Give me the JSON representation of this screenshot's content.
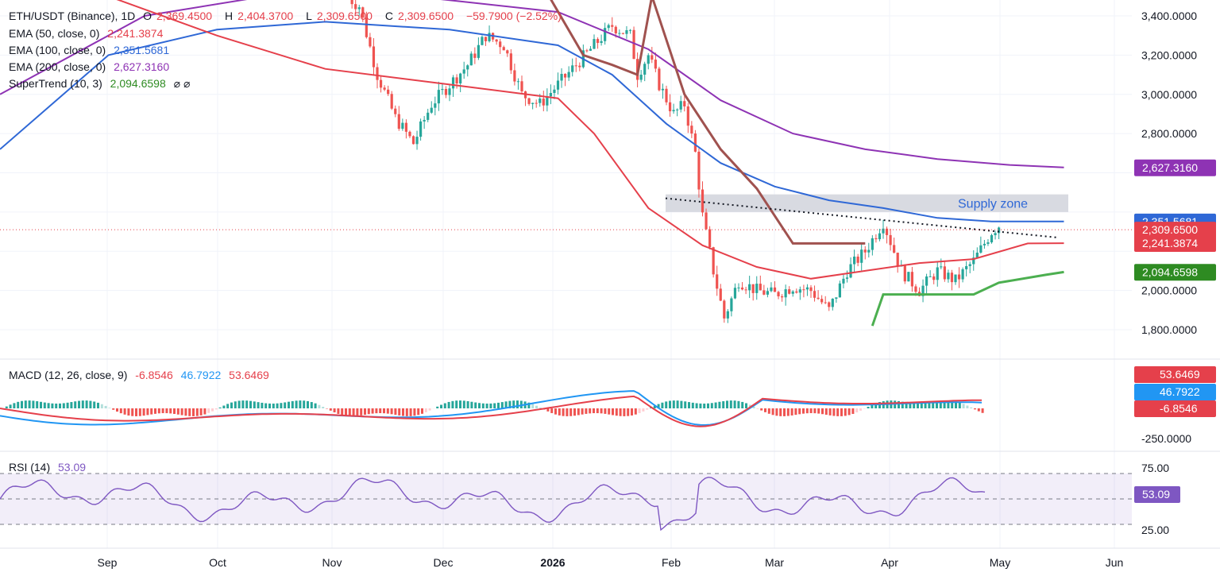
{
  "symbol_legend": {
    "title": "ETH/USDT (Binance), 1D",
    "open_label": "O",
    "open": "2,369.4500",
    "high_label": "H",
    "high": "2,404.3700",
    "low_label": "L",
    "low": "2,309.6500",
    "close_label": "C",
    "close": "2,309.6500",
    "change": "−59.7900 (−2.52%)"
  },
  "indicators": [
    {
      "label": "EMA (50, close, 0)",
      "value": "2,241.3874",
      "color": "#e5404b"
    },
    {
      "label": "EMA (100, close, 0)",
      "value": "2,351.5681",
      "color": "#2f68d6"
    },
    {
      "label": "EMA (200, close, 0)",
      "value": "2,627.3160",
      "color": "#8e33b4"
    },
    {
      "label": "SuperTrend (10, 3)",
      "value": "2,094.6598",
      "color": "#2e8b22",
      "icons": "⌀ ⌀"
    }
  ],
  "macd_legend": {
    "label": "MACD (12, 26, close, 9)",
    "hist": "-6.8546",
    "macd": "46.7922",
    "signal": "53.6469"
  },
  "rsi_legend": {
    "label": "RSI (14)",
    "value": "53.09"
  },
  "chart_data": {
    "type": "candlestick",
    "price_axis": {
      "ticks": [
        "3,400.0000",
        "3,200.0000",
        "3,000.0000",
        "2,800.0000",
        "2,000.0000",
        "1,800.0000"
      ],
      "tick_values": [
        3400,
        3200,
        3000,
        2800,
        2000,
        1800
      ]
    },
    "time_axis": {
      "labels": [
        "Sep",
        "Oct",
        "Nov",
        "Dec",
        "2026",
        "Feb",
        "Mar",
        "Apr",
        "May",
        "Jun"
      ]
    },
    "price_badges": [
      {
        "text": "2,627.3160",
        "value": 2627.316,
        "color": "#8e33b4"
      },
      {
        "text": "2,351.5681",
        "value": 2351.5681,
        "color": "#2f68d6"
      },
      {
        "text": "2,309.6500",
        "value": 2309.65,
        "color": "#e5404b"
      },
      {
        "text": "2,241.3874",
        "value": 2241.3874,
        "color": "#e5404b"
      },
      {
        "text": "2,094.6598",
        "value": 2094.6598,
        "color": "#2e8b22"
      }
    ],
    "supply_zone": {
      "label": "Supply zone",
      "low": 2400,
      "high": 2490
    },
    "ema50_approx": [
      [
        0,
        3600
      ],
      [
        30,
        3500
      ],
      [
        60,
        3300
      ],
      [
        90,
        3130
      ],
      [
        120,
        3050
      ],
      [
        150,
        2980
      ],
      [
        160,
        2800
      ],
      [
        175,
        2420
      ],
      [
        190,
        2230
      ],
      [
        205,
        2120
      ],
      [
        220,
        2060
      ],
      [
        235,
        2100
      ],
      [
        250,
        2140
      ],
      [
        265,
        2160
      ],
      [
        280,
        2240
      ],
      [
        290,
        2241
      ]
    ],
    "ema100_approx": [
      [
        0,
        2720
      ],
      [
        30,
        3200
      ],
      [
        60,
        3330
      ],
      [
        90,
        3370
      ],
      [
        120,
        3330
      ],
      [
        150,
        3250
      ],
      [
        165,
        3100
      ],
      [
        180,
        2850
      ],
      [
        195,
        2650
      ],
      [
        210,
        2530
      ],
      [
        225,
        2460
      ],
      [
        240,
        2420
      ],
      [
        255,
        2370
      ],
      [
        270,
        2352
      ],
      [
        290,
        2352
      ]
    ],
    "ema200_approx": [
      [
        0,
        3000
      ],
      [
        40,
        3400
      ],
      [
        80,
        3520
      ],
      [
        110,
        3500
      ],
      [
        150,
        3420
      ],
      [
        175,
        3230
      ],
      [
        195,
        2970
      ],
      [
        215,
        2800
      ],
      [
        235,
        2720
      ],
      [
        255,
        2670
      ],
      [
        275,
        2640
      ],
      [
        290,
        2627
      ]
    ],
    "supertrend_approx": [
      [
        80,
        3700
      ],
      [
        110,
        3580
      ],
      [
        145,
        3580
      ],
      [
        157,
        3200
      ],
      [
        165,
        3150
      ],
      [
        172,
        3100
      ],
      [
        176,
        3500
      ],
      [
        185,
        3000
      ],
      [
        195,
        2720
      ],
      [
        205,
        2520
      ],
      [
        215,
        2240
      ],
      [
        235,
        2240
      ],
      [
        237,
        1820
      ],
      [
        240,
        1980
      ],
      [
        265,
        1980
      ],
      [
        272,
        2040
      ],
      [
        285,
        2080
      ],
      [
        290,
        2094
      ]
    ],
    "trendline": {
      "from": [
        160,
        2470
      ],
      "to": [
        308,
        2270
      ]
    },
    "macd": {
      "axis_tick": "-250.0000",
      "badges": [
        {
          "text": "53.6469",
          "color": "#e5404b"
        },
        {
          "text": "46.7922",
          "color": "#2196f3"
        },
        {
          "text": "-6.8546",
          "color": "#e5404b"
        }
      ]
    },
    "rsi": {
      "levels": [
        70,
        50,
        30
      ],
      "axis_ticks": [
        "75.00",
        "25.00"
      ],
      "badge": "53.09",
      "value": 53.09
    }
  }
}
